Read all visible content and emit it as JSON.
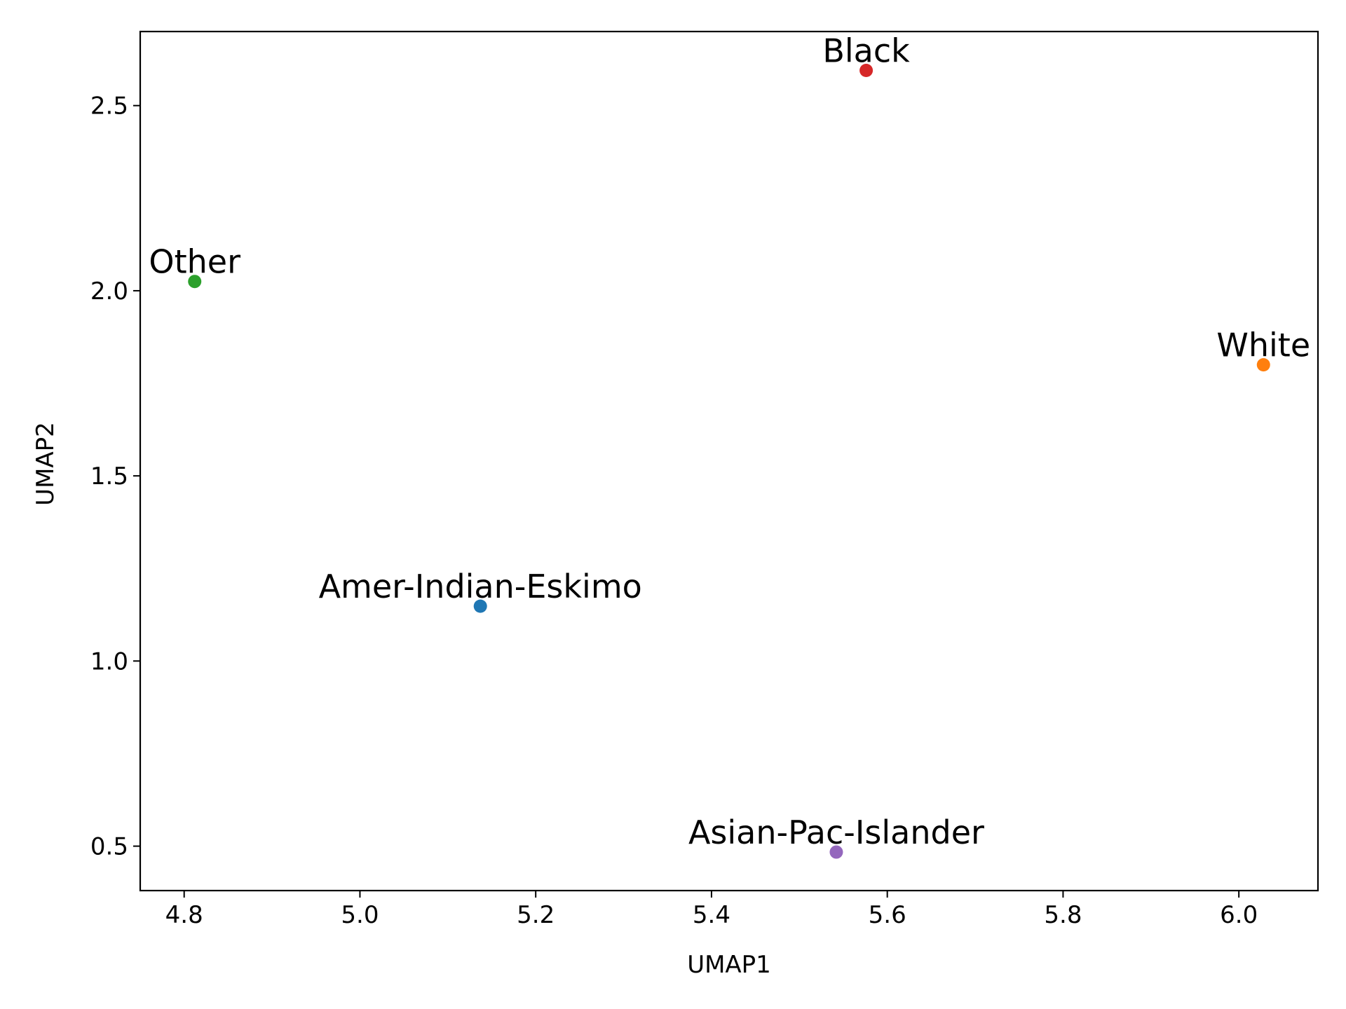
{
  "chart_data": {
    "type": "scatter",
    "title": "",
    "xlabel": "UMAP1",
    "ylabel": "UMAP2",
    "xlim": [
      4.75,
      6.09
    ],
    "ylim": [
      0.38,
      2.7
    ],
    "xticks": [
      4.8,
      5.0,
      5.2,
      5.4,
      5.6,
      5.8,
      6.0
    ],
    "xtick_labels": [
      "4.8",
      "5.0",
      "5.2",
      "5.4",
      "5.6",
      "5.8",
      "6.0"
    ],
    "yticks": [
      0.5,
      1.0,
      1.5,
      2.0,
      2.5
    ],
    "ytick_labels": [
      "0.5",
      "1.0",
      "1.5",
      "2.0",
      "2.5"
    ],
    "grid": false,
    "points": [
      {
        "label": "Amer-Indian-Eskimo",
        "x": 5.137,
        "y": 1.148,
        "color": "#1f77b4"
      },
      {
        "label": "White",
        "x": 6.028,
        "y": 1.8,
        "color": "#ff7f0e"
      },
      {
        "label": "Other",
        "x": 4.812,
        "y": 2.025,
        "color": "#2ca02c"
      },
      {
        "label": "Black",
        "x": 5.576,
        "y": 2.595,
        "color": "#d62728"
      },
      {
        "label": "Asian-Pac-Islander",
        "x": 5.542,
        "y": 0.484,
        "color": "#9467bd"
      }
    ]
  }
}
